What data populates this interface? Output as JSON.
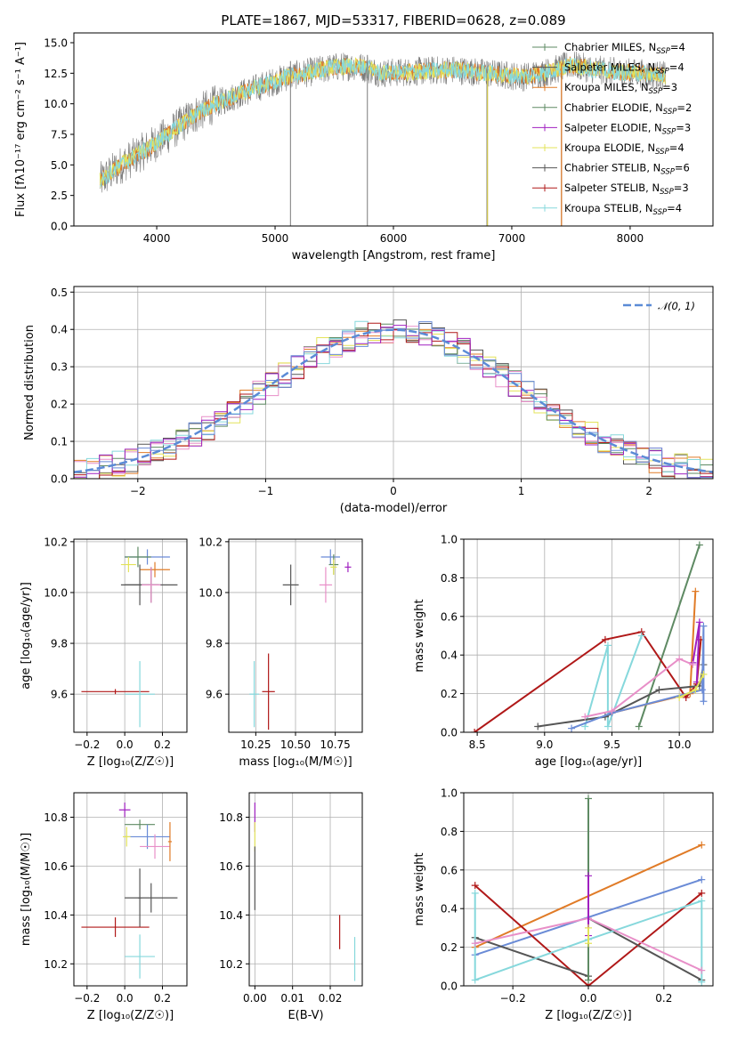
{
  "colors": {
    "chabrier_miles": "#6a8bd6",
    "salpeter_miles": "#e07b27",
    "kroupa_miles": "#e07b27",
    "chabrier_elodie": "#5e8a63",
    "salpeter_elodie": "#a020c0",
    "kroupa_elodie": "#e3e35a",
    "chabrier_stelib": "#555555",
    "salpeter_stelib": "#b01818",
    "kroupa_stelib": "#86d8dc",
    "gauss": "#5b8bd6",
    "pink": "#e88fc8"
  },
  "chart_data": [
    {
      "id": "spectrum",
      "type": "line",
      "title": "PLATE=1867, MJD=53317, FIBERID=0628, z=0.089",
      "xlabel": "wavelength [Angstrom, rest frame]",
      "ylabel": "Flux [fλ10⁻¹⁷ erg cm⁻² s⁻¹ A⁻¹]",
      "xlim": [
        3300,
        8700
      ],
      "ylim": [
        0,
        15.8
      ],
      "xticks": [
        "4000",
        "5000",
        "6000",
        "7000",
        "8000"
      ],
      "yticks": [
        "0.0",
        "2.5",
        "5.0",
        "7.5",
        "10.0",
        "12.5",
        "15.0"
      ],
      "legend_placement": "top-right",
      "series": [
        {
          "name": "Chabrier MILES, N_SSP=4",
          "label": "Chabrier MILES, N",
          "sub": "SSP",
          "suffix": "=4"
        },
        {
          "name": "Salpeter MILES, N_SSP=4",
          "label": "Salpeter MILES, N",
          "sub": "SSP",
          "suffix": "=4"
        },
        {
          "name": "Kroupa MILES, N_SSP=3",
          "label": "Kroupa MILES, N",
          "sub": "SSP",
          "suffix": "=3"
        },
        {
          "name": "Chabrier ELODIE, N_SSP=2",
          "label": "Chabrier ELODIE, N",
          "sub": "SSP",
          "suffix": "=2"
        },
        {
          "name": "Salpeter ELODIE, N_SSP=3",
          "label": "Salpeter ELODIE, N",
          "sub": "SSP",
          "suffix": "=3"
        },
        {
          "name": "Kroupa ELODIE, N_SSP=4",
          "label": "Kroupa ELODIE, N",
          "sub": "SSP",
          "suffix": "=4"
        },
        {
          "name": "Chabrier STELIB, N_SSP=6",
          "label": "Chabrier STELIB, N",
          "sub": "SSP",
          "suffix": "=6"
        },
        {
          "name": "Salpeter STELIB, N_SSP=3",
          "label": "Salpeter STELIB, N",
          "sub": "SSP",
          "suffix": "=3"
        },
        {
          "name": "Kroupa STELIB, N_SSP=4",
          "label": "Kroupa STELIB, N",
          "sub": "SSP",
          "suffix": "=4"
        }
      ],
      "continuum": {
        "x": [
          3500,
          3700,
          3900,
          4100,
          4300,
          4500,
          4700,
          4900,
          5100,
          5300,
          5500,
          5700,
          5900,
          6100,
          6300,
          6500,
          6700,
          6900,
          7100,
          7300,
          7500,
          7700,
          7900,
          8100,
          8300
        ],
        "y": [
          3.5,
          5.0,
          6.2,
          7.5,
          9.0,
          10.0,
          10.8,
          11.5,
          12.2,
          12.6,
          13.0,
          13.1,
          12.5,
          12.6,
          12.7,
          12.8,
          12.6,
          12.4,
          12.2,
          12.6,
          13.2,
          12.8,
          12.6,
          12.5,
          12.3
        ]
      },
      "spikes": [
        {
          "x": 5130,
          "y": 13.5
        },
        {
          "x": 5780,
          "y": 14.0
        },
        {
          "x": 6790,
          "y": 13.5
        },
        {
          "x": 7420,
          "y": 13.3
        }
      ]
    },
    {
      "id": "residuals",
      "type": "line",
      "xlabel": "(data-model)/error",
      "ylabel": "Normed distribution",
      "xlim": [
        -2.5,
        2.5
      ],
      "ylim": [
        0,
        0.515
      ],
      "xticks": [
        "−2",
        "−1",
        "0",
        "1",
        "2"
      ],
      "yticks": [
        "0.0",
        "0.1",
        "0.2",
        "0.3",
        "0.4",
        "0.5"
      ],
      "legend": "𝒩(0, 1)",
      "legend_placement": "top-right",
      "bin_width": 0.1,
      "gaussian": {
        "mu": 0,
        "sigma": 1
      }
    },
    {
      "id": "age-vs-Z",
      "type": "scatter",
      "xlabel": "Z [log₁₀(Z/Z☉)]",
      "ylabel": "age  [log₁₀(age/yr)]",
      "xlim": [
        -0.27,
        0.33
      ],
      "ylim": [
        9.45,
        10.21
      ],
      "xticks": [
        "−0.2",
        "0.0",
        "0.2"
      ],
      "yticks": [
        "9.6",
        "9.8",
        "10.0",
        "10.2"
      ],
      "points": [
        {
          "x": 0.12,
          "y": 10.14,
          "xerr": 0.12,
          "yerr": 0.03,
          "c": "chabrier_miles"
        },
        {
          "x": 0.16,
          "y": 10.09,
          "xerr": 0.08,
          "yerr": 0.03,
          "c": "salpeter_miles"
        },
        {
          "x": 0.07,
          "y": 10.14,
          "xerr": 0.07,
          "yerr": 0.04,
          "c": "chabrier_elodie"
        },
        {
          "x": 0.02,
          "y": 10.11,
          "xerr": 0.04,
          "yerr": 0.03,
          "c": "kroupa_elodie"
        },
        {
          "x": 0.08,
          "y": 10.03,
          "xerr": 0.1,
          "yerr": 0.08,
          "c": "chabrier_stelib"
        },
        {
          "x": 0.14,
          "y": 10.03,
          "xerr": 0.14,
          "yerr": 0.07,
          "c": "chabrier_stelib"
        },
        {
          "x": 0.14,
          "y": 10.03,
          "xerr": 0.05,
          "yerr": 0.07,
          "c": "pink"
        },
        {
          "x": -0.05,
          "y": 9.61,
          "xerr": 0.18,
          "yerr": 0.01,
          "c": "salpeter_stelib"
        },
        {
          "x": 0.08,
          "y": 9.6,
          "xerr": 0.08,
          "yerr": 0.13,
          "c": "kroupa_stelib"
        }
      ]
    },
    {
      "id": "age-vs-mass",
      "type": "scatter",
      "xlabel": "mass [log₁₀(M/M☉)]",
      "ylabel": "",
      "xlim": [
        10.08,
        10.92
      ],
      "ylim": [
        9.45,
        10.21
      ],
      "xticks": [
        "10.25",
        "10.50",
        "10.75"
      ],
      "yticks": [
        "9.6",
        "9.8",
        "10.0",
        "10.2"
      ],
      "points": [
        {
          "x": 10.72,
          "y": 10.14,
          "xerr": 0.06,
          "yerr": 0.03,
          "c": "chabrier_miles"
        },
        {
          "x": 10.74,
          "y": 10.11,
          "xerr": 0.03,
          "yerr": 0.04,
          "c": "chabrier_elodie"
        },
        {
          "x": 10.74,
          "y": 10.1,
          "xerr": 0.02,
          "yerr": 0.03,
          "c": "kroupa_elodie"
        },
        {
          "x": 10.83,
          "y": 10.1,
          "xerr": 0.02,
          "yerr": 0.02,
          "c": "salpeter_elodie"
        },
        {
          "x": 10.47,
          "y": 10.03,
          "xerr": 0.05,
          "yerr": 0.08,
          "c": "chabrier_stelib"
        },
        {
          "x": 10.69,
          "y": 10.03,
          "xerr": 0.04,
          "yerr": 0.07,
          "c": "pink"
        },
        {
          "x": 10.33,
          "y": 9.61,
          "xerr": 0.04,
          "yerr": 0.15,
          "c": "salpeter_stelib"
        },
        {
          "x": 10.24,
          "y": 9.6,
          "xerr": 0.03,
          "yerr": 0.13,
          "c": "kroupa_stelib"
        }
      ]
    },
    {
      "id": "mass-weight-vs-age",
      "type": "line",
      "xlabel": "age  [log₁₀(age/yr)]",
      "ylabel": "mass weight",
      "xlim": [
        8.4,
        10.25
      ],
      "ylim": [
        0,
        1.0
      ],
      "xticks": [
        "8.5",
        "9.0",
        "9.5",
        "10.0"
      ],
      "yticks": [
        "0.0",
        "0.2",
        "0.4",
        "0.6",
        "0.8",
        "1.0"
      ],
      "series": [
        {
          "c": "chabrier_elodie",
          "x": [
            9.7,
            10.15
          ],
          "y": [
            0.03,
            0.97
          ]
        },
        {
          "c": "salpeter_miles",
          "x": [
            9.5,
            10.08,
            10.12
          ],
          "y": [
            0.1,
            0.2,
            0.73
          ]
        },
        {
          "c": "salpeter_stelib",
          "x": [
            8.48,
            9.45,
            9.72,
            10.05,
            10.13,
            10.16
          ],
          "y": [
            0.0,
            0.48,
            0.52,
            0.18,
            0.25,
            0.48
          ]
        },
        {
          "c": "kroupa_stelib",
          "x": [
            9.3,
            9.47,
            9.47,
            9.72
          ],
          "y": [
            0.03,
            0.45,
            0.03,
            0.5
          ]
        },
        {
          "c": "chabrier_stelib",
          "x": [
            8.95,
            9.45,
            9.85,
            10.15,
            10.18
          ],
          "y": [
            0.03,
            0.08,
            0.22,
            0.24,
            0.35
          ]
        },
        {
          "c": "chabrier_miles",
          "x": [
            9.2,
            9.5,
            10.17,
            10.18,
            10.18
          ],
          "y": [
            0.02,
            0.1,
            0.22,
            0.55,
            0.16
          ]
        },
        {
          "c": "salpeter_elodie",
          "x": [
            10.13,
            10.15,
            10.1
          ],
          "y": [
            0.26,
            0.57,
            0.36
          ]
        },
        {
          "c": "pink",
          "x": [
            9.3,
            9.5,
            10.0,
            10.1
          ],
          "y": [
            0.08,
            0.11,
            0.38,
            0.35
          ]
        },
        {
          "c": "kroupa_elodie",
          "x": [
            10.0,
            10.12,
            10.18
          ],
          "y": [
            0.18,
            0.22,
            0.3
          ]
        }
      ]
    },
    {
      "id": "mass-vs-Z",
      "type": "scatter",
      "xlabel": "Z [log₁₀(Z/Z☉)]",
      "ylabel": "mass [log₁₀(M/M☉)]",
      "xlim": [
        -0.27,
        0.33
      ],
      "ylim": [
        10.11,
        10.9
      ],
      "xticks": [
        "−0.2",
        "0.0",
        "0.2"
      ],
      "yticks": [
        "10.2",
        "10.4",
        "10.6",
        "10.8"
      ],
      "points": [
        {
          "x": 0.0,
          "y": 10.83,
          "xerr": 0.03,
          "yerr": 0.03,
          "c": "salpeter_elodie"
        },
        {
          "x": 0.08,
          "y": 10.77,
          "xerr": 0.08,
          "yerr": 0.02,
          "c": "chabrier_elodie"
        },
        {
          "x": 0.12,
          "y": 10.72,
          "xerr": 0.12,
          "yerr": 0.05,
          "c": "chabrier_miles"
        },
        {
          "x": 0.16,
          "y": 10.68,
          "xerr": 0.08,
          "yerr": 0.05,
          "c": "pink"
        },
        {
          "x": 0.24,
          "y": 10.7,
          "xerr": 0.01,
          "yerr": 0.08,
          "c": "salpeter_miles"
        },
        {
          "x": 0.01,
          "y": 10.72,
          "xerr": 0.02,
          "yerr": 0.04,
          "c": "kroupa_elodie"
        },
        {
          "x": 0.14,
          "y": 10.47,
          "xerr": 0.14,
          "yerr": 0.06,
          "c": "chabrier_stelib"
        },
        {
          "x": 0.08,
          "y": 10.47,
          "xerr": 0.01,
          "yerr": 0.12,
          "c": "chabrier_stelib"
        },
        {
          "x": -0.05,
          "y": 10.35,
          "xerr": 0.18,
          "yerr": 0.04,
          "c": "salpeter_stelib"
        },
        {
          "x": 0.08,
          "y": 10.23,
          "xerr": 0.08,
          "yerr": 0.09,
          "c": "kroupa_stelib"
        }
      ]
    },
    {
      "id": "mass-vs-EBV",
      "type": "scatter",
      "xlabel": "E(B-V)",
      "ylabel": "",
      "xlim": [
        -0.0015,
        0.0285
      ],
      "ylim": [
        10.11,
        10.9
      ],
      "xticks": [
        "0.00",
        "0.01",
        "0.02"
      ],
      "yticks": [
        "10.2",
        "10.4",
        "10.6",
        "10.8"
      ],
      "points": [
        {
          "x": 0.0,
          "y": 10.8,
          "xerr": 0.0,
          "yerr": 0.06,
          "c": "salpeter_elodie"
        },
        {
          "x": 0.0,
          "y": 10.72,
          "xerr": 0.0,
          "yerr": 0.06,
          "c": "kroupa_elodie"
        },
        {
          "x": 0.0,
          "y": 10.55,
          "xerr": 0.0,
          "yerr": 0.13,
          "c": "chabrier_stelib"
        },
        {
          "x": 0.0225,
          "y": 10.33,
          "xerr": 0.0,
          "yerr": 0.07,
          "c": "salpeter_stelib"
        },
        {
          "x": 0.0265,
          "y": 10.22,
          "xerr": 0.0,
          "yerr": 0.09,
          "c": "kroupa_stelib"
        }
      ]
    },
    {
      "id": "mass-weight-vs-Z",
      "type": "line",
      "xlabel": "Z [log₁₀(Z/Z☉)]",
      "ylabel": "mass weight",
      "xlim": [
        -0.33,
        0.33
      ],
      "ylim": [
        0,
        1.0
      ],
      "xticks": [
        "−0.2",
        "0.0",
        "0.2"
      ],
      "yticks": [
        "0.0",
        "0.2",
        "0.4",
        "0.6",
        "0.8",
        "1.0"
      ],
      "series": [
        {
          "c": "salpeter_miles",
          "x": [
            -0.3,
            0.3
          ],
          "y": [
            0.2,
            0.73
          ]
        },
        {
          "c": "chabrier_miles",
          "x": [
            -0.3,
            0.3
          ],
          "y": [
            0.16,
            0.55
          ]
        },
        {
          "c": "salpeter_stelib",
          "x": [
            -0.3,
            0.0,
            0.3
          ],
          "y": [
            0.52,
            0.0,
            0.48
          ]
        },
        {
          "c": "chabrier_stelib",
          "x": [
            -0.3,
            0.0,
            0.0,
            0.3
          ],
          "y": [
            0.25,
            0.05,
            0.35,
            0.03
          ]
        },
        {
          "c": "kroupa_stelib",
          "x": [
            -0.3,
            -0.3,
            0.0,
            0.3,
            0.3
          ],
          "y": [
            0.48,
            0.03,
            0.24,
            0.44,
            0.02
          ]
        },
        {
          "c": "pink",
          "x": [
            -0.3,
            0.0,
            0.3
          ],
          "y": [
            0.22,
            0.35,
            0.08
          ]
        },
        {
          "c": "chabrier_elodie",
          "x": [
            0.0,
            0.0
          ],
          "y": [
            0.03,
            0.97
          ]
        },
        {
          "c": "salpeter_elodie",
          "x": [
            0.0,
            0.0
          ],
          "y": [
            0.57,
            0.26
          ]
        },
        {
          "c": "kroupa_elodie",
          "x": [
            0.0,
            0.0
          ],
          "y": [
            0.3,
            0.22
          ]
        }
      ]
    }
  ]
}
